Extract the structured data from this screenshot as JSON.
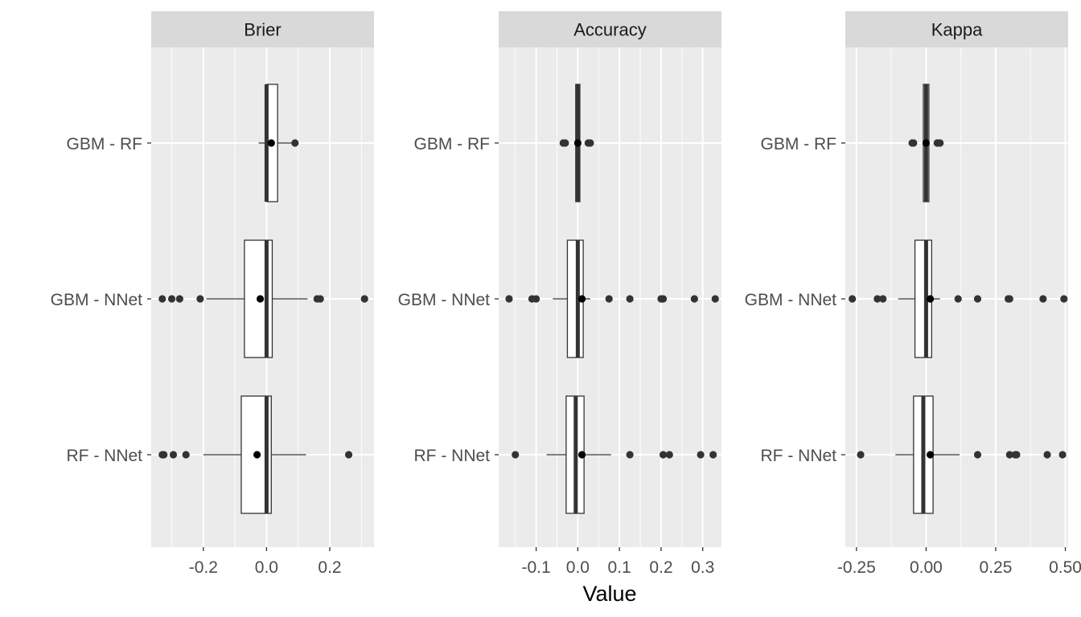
{
  "chart_data": {
    "type": "boxplot",
    "xlabel": "Value",
    "ylabel": "",
    "categories": [
      "GBM - RF",
      "GBM - NNet",
      "RF - NNet"
    ],
    "colors": {
      "panel_bg": "#ebebeb",
      "strip_bg": "#d9d9d9",
      "grid": "#ffffff",
      "box_fill": "#ffffff",
      "outline": "#333333",
      "point": "#333333"
    },
    "grid": true,
    "panels": [
      {
        "title": "Brier",
        "xlim": [
          -0.365,
          0.34
        ],
        "ticks": [
          -0.2,
          0.0,
          0.2
        ],
        "tick_labels": [
          "-0.2",
          "0.0",
          "0.2"
        ],
        "boxes": [
          {
            "category": "GBM - RF",
            "whisker_low": -0.025,
            "q1": 0.0,
            "median": 0.0,
            "q3": 0.035,
            "whisker_high": 0.09,
            "mean": 0.015,
            "outliers": [
              0.09
            ]
          },
          {
            "category": "GBM - NNet",
            "whisker_low": -0.19,
            "q1": -0.07,
            "median": 0.0,
            "q3": 0.018,
            "whisker_high": 0.13,
            "mean": -0.02,
            "outliers": [
              -0.33,
              -0.3,
              -0.275,
              -0.21,
              0.16,
              0.17,
              0.31
            ]
          },
          {
            "category": "RF - NNet",
            "whisker_low": -0.2,
            "q1": -0.08,
            "median": 0.0,
            "q3": 0.015,
            "whisker_high": 0.125,
            "mean": -0.03,
            "outliers": [
              -0.33,
              -0.325,
              -0.295,
              -0.255,
              0.26
            ]
          }
        ]
      },
      {
        "title": "Accuracy",
        "xlim": [
          -0.19,
          0.345
        ],
        "ticks": [
          -0.1,
          0.0,
          0.1,
          0.2,
          0.3
        ],
        "tick_labels": [
          "-0.1",
          "0.0",
          "0.1",
          "0.2",
          "0.3"
        ],
        "boxes": [
          {
            "category": "GBM - RF",
            "whisker_low": -0.005,
            "q1": -0.005,
            "median": 0.0,
            "q3": 0.005,
            "whisker_high": 0.005,
            "mean": 0.0,
            "outliers": [
              -0.035,
              -0.03,
              0.025,
              0.03
            ]
          },
          {
            "category": "GBM - NNet",
            "whisker_low": -0.06,
            "q1": -0.025,
            "median": 0.0,
            "q3": 0.013,
            "whisker_high": 0.03,
            "mean": 0.01,
            "outliers": [
              -0.165,
              -0.11,
              -0.1,
              0.075,
              0.125,
              0.2,
              0.205,
              0.28,
              0.33
            ]
          },
          {
            "category": "RF - NNet",
            "whisker_low": -0.075,
            "q1": -0.028,
            "median": -0.005,
            "q3": 0.015,
            "whisker_high": 0.08,
            "mean": 0.01,
            "outliers": [
              -0.15,
              0.125,
              0.205,
              0.22,
              0.295,
              0.325
            ]
          }
        ]
      },
      {
        "title": "Kappa",
        "xlim": [
          -0.29,
          0.51
        ],
        "ticks": [
          -0.25,
          0.0,
          0.25,
          0.5
        ],
        "tick_labels": [
          "-0.25",
          "0.00",
          "0.25",
          "0.50"
        ],
        "boxes": [
          {
            "category": "GBM - RF",
            "whisker_low": -0.01,
            "q1": -0.01,
            "median": 0.0,
            "q3": 0.01,
            "whisker_high": 0.01,
            "mean": 0.0,
            "outliers": [
              -0.05,
              -0.045,
              0.04,
              0.05
            ]
          },
          {
            "category": "GBM - NNet",
            "whisker_low": -0.1,
            "q1": -0.04,
            "median": 0.0,
            "q3": 0.02,
            "whisker_high": 0.05,
            "mean": 0.015,
            "outliers": [
              -0.265,
              -0.175,
              -0.155,
              0.115,
              0.185,
              0.295,
              0.3,
              0.42,
              0.495
            ]
          },
          {
            "category": "RF - NNet",
            "whisker_low": -0.11,
            "q1": -0.045,
            "median": -0.01,
            "q3": 0.025,
            "whisker_high": 0.12,
            "mean": 0.015,
            "outliers": [
              -0.235,
              0.185,
              0.3,
              0.32,
              0.325,
              0.435,
              0.49
            ]
          }
        ]
      }
    ]
  }
}
